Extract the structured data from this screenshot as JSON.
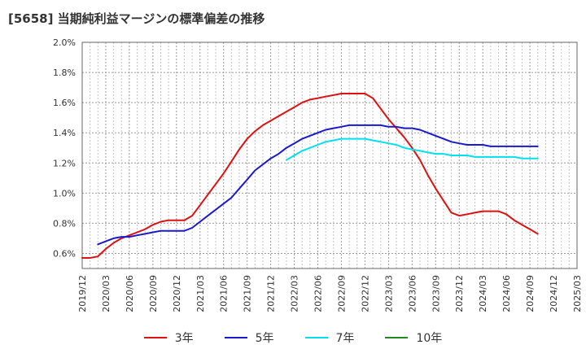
{
  "chart_data": {
    "type": "line",
    "title": "[5658]  当期純利益マージンの標準偏差の推移",
    "x_ticks": [
      "2019/12",
      "2020/03",
      "2020/06",
      "2020/09",
      "2020/12",
      "2021/03",
      "2021/06",
      "2021/09",
      "2021/12",
      "2022/03",
      "2022/06",
      "2022/09",
      "2022/12",
      "2023/03",
      "2023/06",
      "2023/09",
      "2023/12",
      "2024/03",
      "2024/06",
      "2024/09",
      "2024/12",
      "2025/03"
    ],
    "y_ticks": [
      "0.6%",
      "0.8%",
      "1.0%",
      "1.2%",
      "1.4%",
      "1.6%",
      "1.8%",
      "2.0%"
    ],
    "ylim": [
      0.5,
      2.0
    ],
    "y_unit": "%",
    "grid": true,
    "legend_position": "bottom",
    "series": [
      {
        "name": "3年",
        "color": "#dd1111",
        "points": [
          [
            "2019/12",
            0.57
          ],
          [
            "2020/01",
            0.57
          ],
          [
            "2020/02",
            0.58
          ],
          [
            "2020/03",
            0.63
          ],
          [
            "2020/04",
            0.67
          ],
          [
            "2020/05",
            0.7
          ],
          [
            "2020/06",
            0.72
          ],
          [
            "2020/07",
            0.74
          ],
          [
            "2020/08",
            0.76
          ],
          [
            "2020/09",
            0.79
          ],
          [
            "2020/10",
            0.81
          ],
          [
            "2020/11",
            0.82
          ],
          [
            "2020/12",
            0.82
          ],
          [
            "2021/01",
            0.82
          ],
          [
            "2021/02",
            0.85
          ],
          [
            "2021/03",
            0.92
          ],
          [
            "2021/04",
            0.99
          ],
          [
            "2021/05",
            1.06
          ],
          [
            "2021/06",
            1.13
          ],
          [
            "2021/07",
            1.21
          ],
          [
            "2021/08",
            1.29
          ],
          [
            "2021/09",
            1.36
          ],
          [
            "2021/10",
            1.41
          ],
          [
            "2021/11",
            1.45
          ],
          [
            "2021/12",
            1.48
          ],
          [
            "2022/01",
            1.51
          ],
          [
            "2022/02",
            1.54
          ],
          [
            "2022/03",
            1.57
          ],
          [
            "2022/04",
            1.6
          ],
          [
            "2022/05",
            1.62
          ],
          [
            "2022/06",
            1.63
          ],
          [
            "2022/07",
            1.64
          ],
          [
            "2022/08",
            1.65
          ],
          [
            "2022/09",
            1.66
          ],
          [
            "2022/10",
            1.66
          ],
          [
            "2022/11",
            1.66
          ],
          [
            "2022/12",
            1.66
          ],
          [
            "2023/01",
            1.63
          ],
          [
            "2023/02",
            1.56
          ],
          [
            "2023/03",
            1.49
          ],
          [
            "2023/04",
            1.43
          ],
          [
            "2023/05",
            1.37
          ],
          [
            "2023/06",
            1.3
          ],
          [
            "2023/07",
            1.22
          ],
          [
            "2023/08",
            1.12
          ],
          [
            "2023/09",
            1.03
          ],
          [
            "2023/10",
            0.95
          ],
          [
            "2023/11",
            0.87
          ],
          [
            "2023/12",
            0.85
          ],
          [
            "2024/01",
            0.86
          ],
          [
            "2024/02",
            0.87
          ],
          [
            "2024/03",
            0.88
          ],
          [
            "2024/04",
            0.88
          ],
          [
            "2024/05",
            0.88
          ],
          [
            "2024/06",
            0.86
          ],
          [
            "2024/07",
            0.82
          ],
          [
            "2024/08",
            0.79
          ],
          [
            "2024/09",
            0.76
          ],
          [
            "2024/10",
            0.73
          ]
        ]
      },
      {
        "name": "5年",
        "color": "#1a1acc",
        "points": [
          [
            "2020/02",
            0.66
          ],
          [
            "2020/03",
            0.68
          ],
          [
            "2020/04",
            0.7
          ],
          [
            "2020/05",
            0.71
          ],
          [
            "2020/06",
            0.71
          ],
          [
            "2020/07",
            0.72
          ],
          [
            "2020/08",
            0.73
          ],
          [
            "2020/09",
            0.74
          ],
          [
            "2020/10",
            0.75
          ],
          [
            "2020/11",
            0.75
          ],
          [
            "2020/12",
            0.75
          ],
          [
            "2021/01",
            0.75
          ],
          [
            "2021/02",
            0.77
          ],
          [
            "2021/03",
            0.81
          ],
          [
            "2021/04",
            0.85
          ],
          [
            "2021/05",
            0.89
          ],
          [
            "2021/06",
            0.93
          ],
          [
            "2021/07",
            0.97
          ],
          [
            "2021/08",
            1.03
          ],
          [
            "2021/09",
            1.09
          ],
          [
            "2021/10",
            1.15
          ],
          [
            "2021/11",
            1.19
          ],
          [
            "2021/12",
            1.23
          ],
          [
            "2022/01",
            1.26
          ],
          [
            "2022/02",
            1.3
          ],
          [
            "2022/03",
            1.33
          ],
          [
            "2022/04",
            1.36
          ],
          [
            "2022/05",
            1.38
          ],
          [
            "2022/06",
            1.4
          ],
          [
            "2022/07",
            1.42
          ],
          [
            "2022/08",
            1.43
          ],
          [
            "2022/09",
            1.44
          ],
          [
            "2022/10",
            1.45
          ],
          [
            "2022/11",
            1.45
          ],
          [
            "2022/12",
            1.45
          ],
          [
            "2023/01",
            1.45
          ],
          [
            "2023/02",
            1.45
          ],
          [
            "2023/03",
            1.44
          ],
          [
            "2023/04",
            1.44
          ],
          [
            "2023/05",
            1.43
          ],
          [
            "2023/06",
            1.43
          ],
          [
            "2023/07",
            1.42
          ],
          [
            "2023/08",
            1.4
          ],
          [
            "2023/09",
            1.38
          ],
          [
            "2023/10",
            1.36
          ],
          [
            "2023/11",
            1.34
          ],
          [
            "2023/12",
            1.33
          ],
          [
            "2024/01",
            1.32
          ],
          [
            "2024/02",
            1.32
          ],
          [
            "2024/03",
            1.32
          ],
          [
            "2024/04",
            1.31
          ],
          [
            "2024/05",
            1.31
          ],
          [
            "2024/06",
            1.31
          ],
          [
            "2024/07",
            1.31
          ],
          [
            "2024/08",
            1.31
          ],
          [
            "2024/09",
            1.31
          ],
          [
            "2024/10",
            1.31
          ]
        ]
      },
      {
        "name": "7年",
        "color": "#00e0ee",
        "points": [
          [
            "2022/02",
            1.22
          ],
          [
            "2022/03",
            1.25
          ],
          [
            "2022/04",
            1.28
          ],
          [
            "2022/05",
            1.3
          ],
          [
            "2022/06",
            1.32
          ],
          [
            "2022/07",
            1.34
          ],
          [
            "2022/08",
            1.35
          ],
          [
            "2022/09",
            1.36
          ],
          [
            "2022/10",
            1.36
          ],
          [
            "2022/11",
            1.36
          ],
          [
            "2022/12",
            1.36
          ],
          [
            "2023/01",
            1.35
          ],
          [
            "2023/02",
            1.34
          ],
          [
            "2023/03",
            1.33
          ],
          [
            "2023/04",
            1.32
          ],
          [
            "2023/05",
            1.3
          ],
          [
            "2023/06",
            1.29
          ],
          [
            "2023/07",
            1.28
          ],
          [
            "2023/08",
            1.27
          ],
          [
            "2023/09",
            1.26
          ],
          [
            "2023/10",
            1.26
          ],
          [
            "2023/11",
            1.25
          ],
          [
            "2023/12",
            1.25
          ],
          [
            "2024/01",
            1.25
          ],
          [
            "2024/02",
            1.24
          ],
          [
            "2024/03",
            1.24
          ],
          [
            "2024/04",
            1.24
          ],
          [
            "2024/05",
            1.24
          ],
          [
            "2024/06",
            1.24
          ],
          [
            "2024/07",
            1.24
          ],
          [
            "2024/08",
            1.23
          ],
          [
            "2024/09",
            1.23
          ],
          [
            "2024/10",
            1.23
          ]
        ]
      },
      {
        "name": "10年",
        "color": "#228822",
        "points": []
      }
    ]
  }
}
